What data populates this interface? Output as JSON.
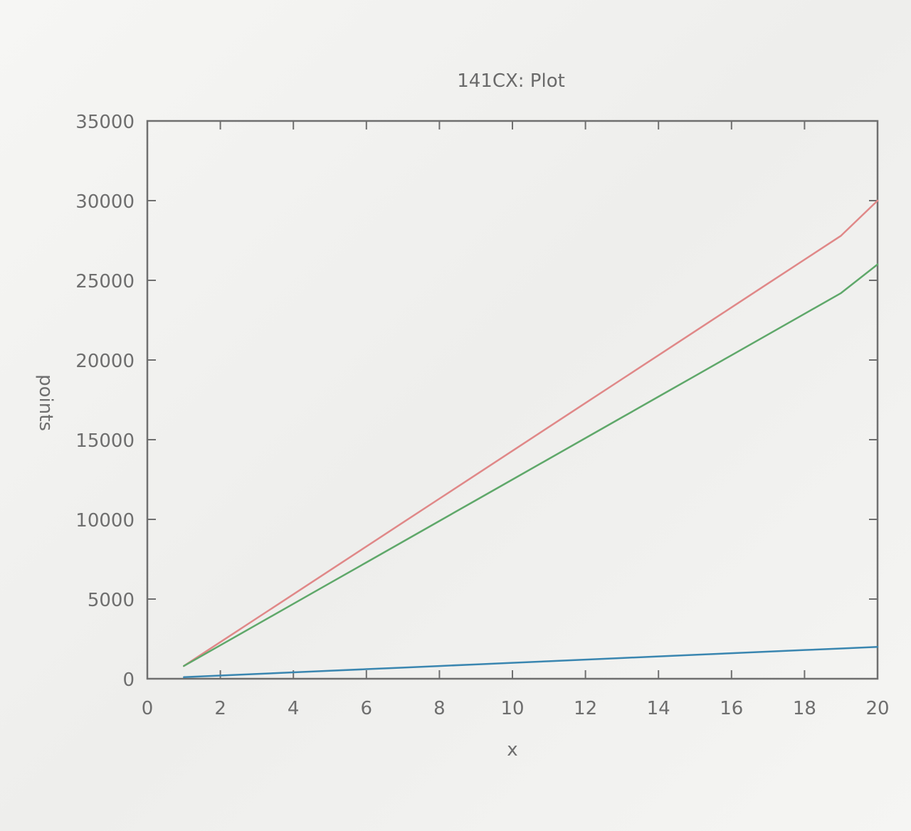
{
  "chart_data": {
    "type": "line",
    "title": "141CX: Plot",
    "xlabel": "x",
    "ylabel": "points",
    "xlim": [
      0,
      20
    ],
    "ylim": [
      0,
      35000
    ],
    "xticks": [
      0,
      2,
      4,
      6,
      8,
      10,
      12,
      14,
      16,
      18,
      20
    ],
    "yticks": [
      0,
      5000,
      10000,
      15000,
      20000,
      25000,
      30000,
      35000
    ],
    "ytick_labels": [
      "0",
      "5000",
      "10000",
      "15000",
      "20000",
      "25000",
      "30000",
      "35000"
    ],
    "grid": false,
    "x": [
      1,
      2,
      3,
      4,
      5,
      6,
      7,
      8,
      9,
      10,
      11,
      12,
      13,
      14,
      15,
      16,
      17,
      18,
      19,
      20
    ],
    "series": [
      {
        "color": "#e08888",
        "values": [
          800,
          2300,
          3800,
          5300,
          6800,
          8300,
          9800,
          11300,
          12800,
          14300,
          15800,
          17300,
          18800,
          20300,
          21800,
          23300,
          24800,
          26300,
          27800,
          30000
        ]
      },
      {
        "color": "#5fa86a",
        "values": [
          800,
          2100,
          3400,
          4700,
          6000,
          7300,
          8600,
          9900,
          11200,
          12500,
          13800,
          15100,
          16400,
          17700,
          19000,
          20300,
          21600,
          22900,
          24200,
          26000
        ]
      },
      {
        "color": "#3a86b0",
        "values": [
          100,
          200,
          300,
          400,
          500,
          600,
          700,
          800,
          900,
          1000,
          1100,
          1200,
          1300,
          1400,
          1500,
          1600,
          1700,
          1800,
          1900,
          2000
        ]
      }
    ]
  }
}
